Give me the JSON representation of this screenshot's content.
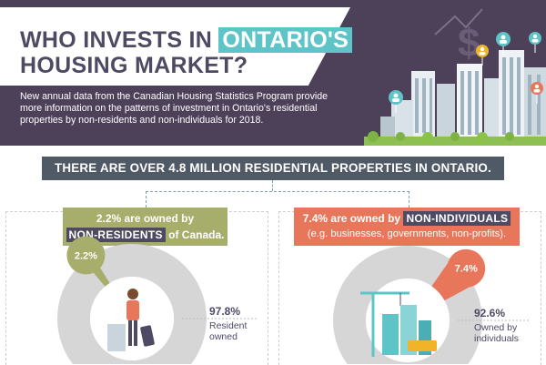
{
  "title": {
    "line1_prefix": "WHO INVESTS IN",
    "line1_highlight": "ONTARIO'S",
    "line2": "HOUSING MARKET?"
  },
  "intro": "New annual data from the Canadian Housing Statistics Program provide more information on the patterns of investment in Ontario's residential properties by non-residents and non-individuals for 2018.",
  "banner": "THERE ARE OVER 4.8 MILLION RESIDENTIAL PROPERTIES IN ONTARIO.",
  "left": {
    "line1": "2.2% are owned by",
    "tag": "NON-RESIDENTS",
    "suffix": "of Canada.",
    "slice_value": "2.2%",
    "slice_fraction": 0.022,
    "rest_value": "97.8%",
    "rest_label_1": "Resident",
    "rest_label_2": "owned"
  },
  "right": {
    "prefix": "7.4% are owned by",
    "tag": "NON-INDIVIDUALS",
    "line2": "(e.g. businesses, governments, non-profits).",
    "slice_value": "7.4%",
    "slice_fraction": 0.074,
    "rest_value": "92.6%",
    "rest_label_1": "Owned by",
    "rest_label_2": "individuals"
  },
  "colors": {
    "header_bg": "#4d4059",
    "teal": "#5fc4c8",
    "olive": "#a7ad6b",
    "coral": "#e8765a",
    "donut_grey": "#d6d6d6",
    "navy_text": "#4e4a63"
  }
}
